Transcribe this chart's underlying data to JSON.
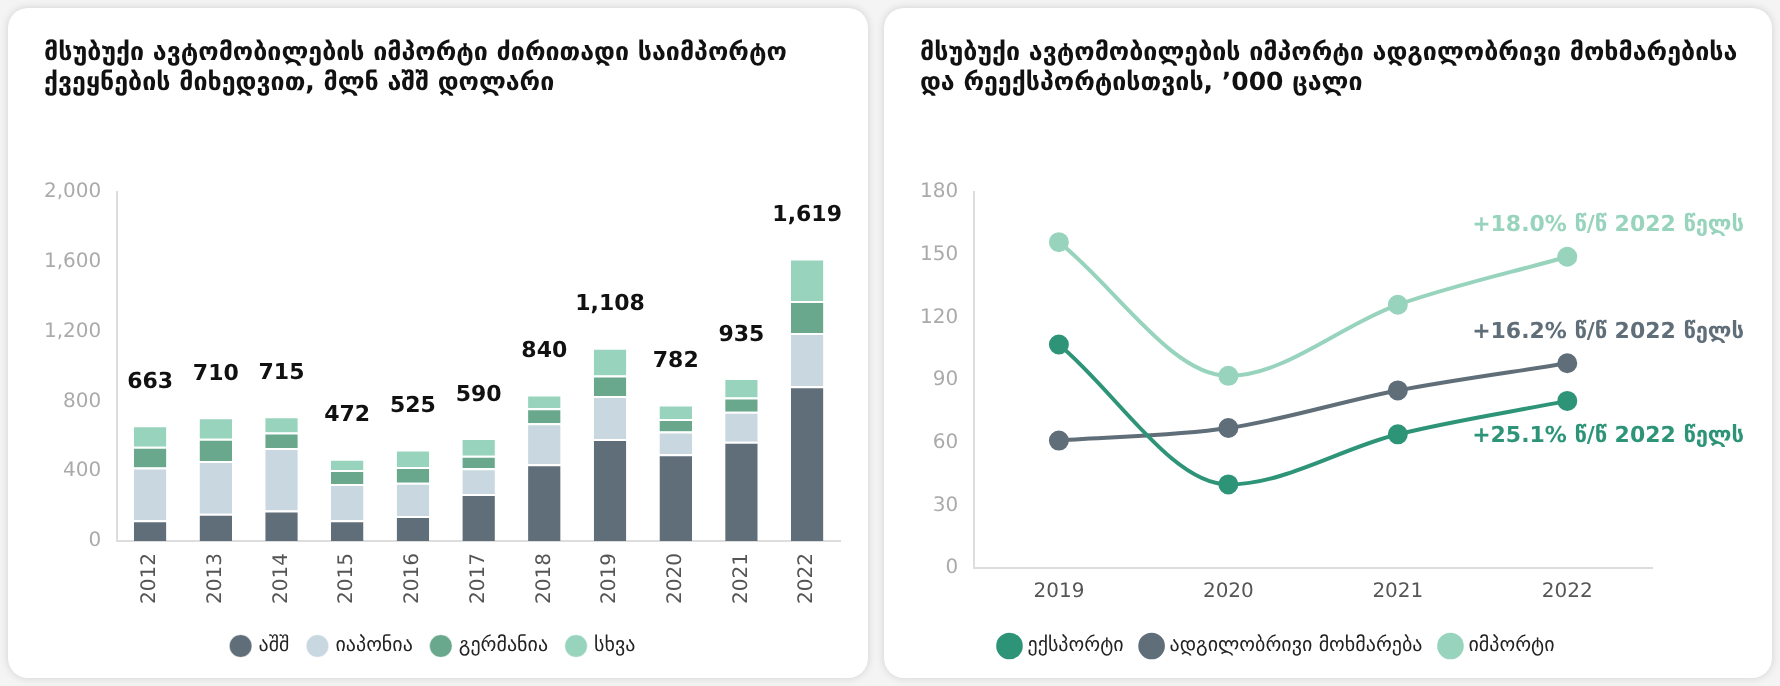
{
  "chart_data": [
    {
      "type": "bar",
      "title": "მსუბუქი ავტომობილების იმპორტი ძირითადი საიმპორტო ქვეყნების მიხედვით, მლნ აშშ დოლარი",
      "categories": [
        "2012",
        "2013",
        "2014",
        "2015",
        "2016",
        "2017",
        "2018",
        "2019",
        "2020",
        "2021",
        "2022"
      ],
      "stacked": true,
      "series": [
        {
          "name": "აშშ",
          "color": "#5f6e78",
          "values": [
            119,
            157,
            175,
            120,
            144,
            270,
            441,
            585,
            497,
            569,
            887
          ]
        },
        {
          "name": "იაპონია",
          "color": "#c9d7e0",
          "values": [
            302,
            302,
            358,
            207,
            190,
            148,
            234,
            247,
            131,
            172,
            305
          ]
        },
        {
          "name": "გერმანია",
          "color": "#6aa88e",
          "values": [
            119,
            127,
            89,
            80,
            91,
            71,
            86,
            117,
            71,
            82,
            184
          ]
        },
        {
          "name": "სხვა",
          "color": "#98d4bd",
          "values": [
            123,
            124,
            93,
            65,
            100,
            101,
            79,
            159,
            83,
            112,
            243
          ]
        }
      ],
      "totals": [
        "663",
        "710",
        "715",
        "472",
        "525",
        "590",
        "840",
        "1,108",
        "782",
        "935",
        "1,619"
      ],
      "ylim": [
        0,
        2000
      ],
      "yticks": [
        0,
        {
          "value": 400,
          "label": "400"
        },
        {
          "value": 800,
          "label": "800"
        },
        {
          "value": 1200,
          "label": "1,200"
        },
        {
          "value": 1600,
          "label": "1,600"
        },
        {
          "value": 2000,
          "label": "2,000"
        }
      ],
      "grid": false,
      "legend": "bottom"
    },
    {
      "type": "line",
      "title": "მსუბუქი ავტომობილების იმპორტი ადგილობრივი მოხმარებისა და რეექსპორტისთვის, ’000 ცალი",
      "categories": [
        "2019",
        "2020",
        "2021",
        "2022"
      ],
      "series": [
        {
          "name": "ექსპორტი",
          "color": "#2e9478",
          "values": [
            107,
            40,
            64,
            80
          ]
        },
        {
          "name": "ადგილობრივი მოხმარება",
          "color": "#5f6e78",
          "values": [
            61,
            67,
            85,
            98
          ]
        },
        {
          "name": "იმპორტი",
          "color": "#98d4bd",
          "values": [
            156,
            92,
            126,
            149
          ]
        }
      ],
      "annotations": [
        {
          "text": "+18.0% წ/წ 2022 წელს",
          "x": "2022",
          "y": 149
        },
        {
          "text": "+16.2% წ/წ 2022 წელს",
          "x": "2022",
          "y": 98
        },
        {
          "text": "+25.1% წ/წ 2022 წელს",
          "x": "2022",
          "y": 80
        }
      ],
      "ylim": [
        0,
        180
      ],
      "yticks": [
        0,
        30,
        60,
        90,
        120,
        150,
        180
      ],
      "grid": false,
      "legend": "bottom",
      "marker": "circle",
      "line_style": "solid"
    }
  ]
}
